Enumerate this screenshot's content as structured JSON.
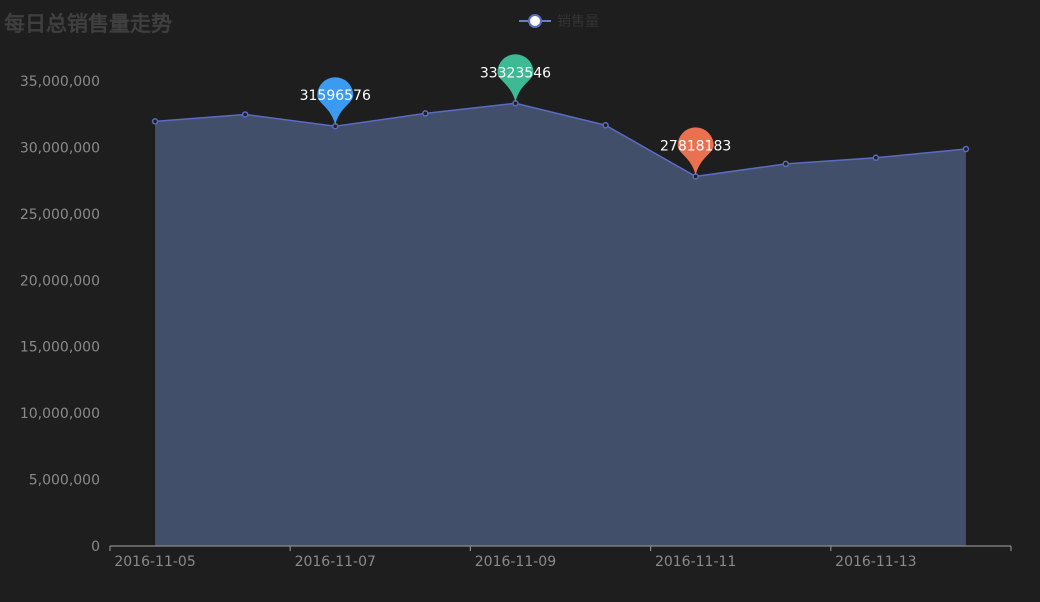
{
  "title": "每日总销售量走势",
  "legend": {
    "label": "销售量"
  },
  "colors": {
    "background": "#1e1e1e",
    "area": "#424f6b",
    "line": "#5b6bc4",
    "max_pin": "#3dba94",
    "min_pin": "#e9714f",
    "point_pin": "#3a9bf0"
  },
  "chart_data": {
    "type": "area",
    "title": "每日总销售量走势",
    "series": [
      {
        "name": "销售量",
        "x": [
          "2016-11-05",
          "2016-11-06",
          "2016-11-07",
          "2016-11-08",
          "2016-11-09",
          "2016-11-10",
          "2016-11-11",
          "2016-11-12",
          "2016-11-13",
          "2016-11-14"
        ],
        "values": [
          31960000,
          32480000,
          31596576,
          32560000,
          33323546,
          31670000,
          27818183,
          28760000,
          29220000,
          29880000
        ]
      }
    ],
    "x_tick_labels": [
      "2016-11-05",
      "2016-11-07",
      "2016-11-09",
      "2016-11-11",
      "2016-11-13"
    ],
    "y_tick_labels": [
      "0",
      "5,000,000",
      "10,000,000",
      "15,000,000",
      "20,000,000",
      "25,000,000",
      "30,000,000",
      "35,000,000"
    ],
    "ylim": [
      0,
      35000000
    ],
    "markers": [
      {
        "x": "2016-11-07",
        "value": 31596576,
        "label": "31596576",
        "color": "#3a9bf0"
      },
      {
        "x": "2016-11-09",
        "value": 33323546,
        "label": "33323546",
        "color": "#3dba94"
      },
      {
        "x": "2016-11-11",
        "value": 27818183,
        "label": "27818183",
        "color": "#e9714f"
      }
    ],
    "grid": false,
    "legend_position": "top-center"
  }
}
